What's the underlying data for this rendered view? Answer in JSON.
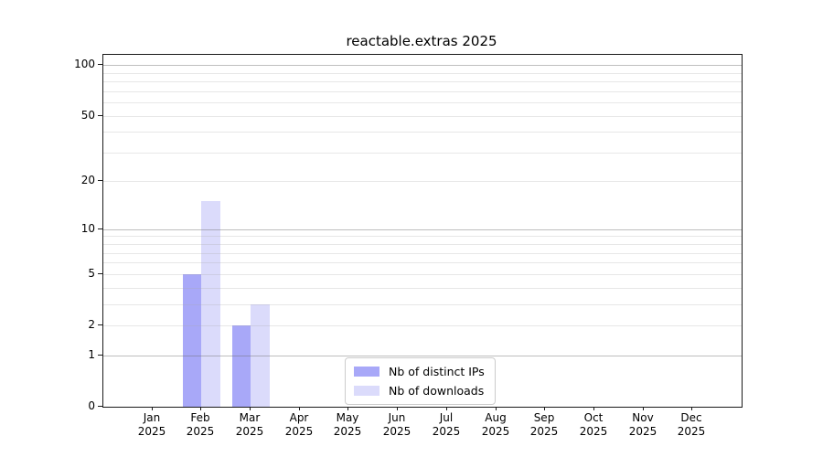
{
  "chart_data": {
    "type": "bar",
    "title": "reactable.extras 2025",
    "year_label": "2025",
    "categories": [
      "Jan",
      "Feb",
      "Mar",
      "Apr",
      "May",
      "Jun",
      "Jul",
      "Aug",
      "Sep",
      "Oct",
      "Nov",
      "Dec"
    ],
    "series": [
      {
        "name": "Nb of distinct IPs",
        "color": "#a8a8f8",
        "values": [
          0,
          5,
          2,
          0,
          0,
          0,
          0,
          0,
          0,
          0,
          0,
          0
        ]
      },
      {
        "name": "Nb of downloads",
        "color": "#dbdbfb",
        "values": [
          0,
          15,
          3,
          0,
          0,
          0,
          0,
          0,
          0,
          0,
          0,
          0
        ]
      }
    ],
    "scale": "log1p",
    "y_ticks": [
      0,
      1,
      2,
      5,
      10,
      20,
      50,
      100
    ],
    "grid_major": [
      1,
      10,
      100
    ],
    "grid_minor": [
      2,
      3,
      4,
      5,
      6,
      7,
      8,
      9,
      20,
      30,
      40,
      50,
      60,
      70,
      80,
      90
    ],
    "ylim": [
      0,
      110
    ],
    "grid": true,
    "legend_position": "bottom-center"
  }
}
